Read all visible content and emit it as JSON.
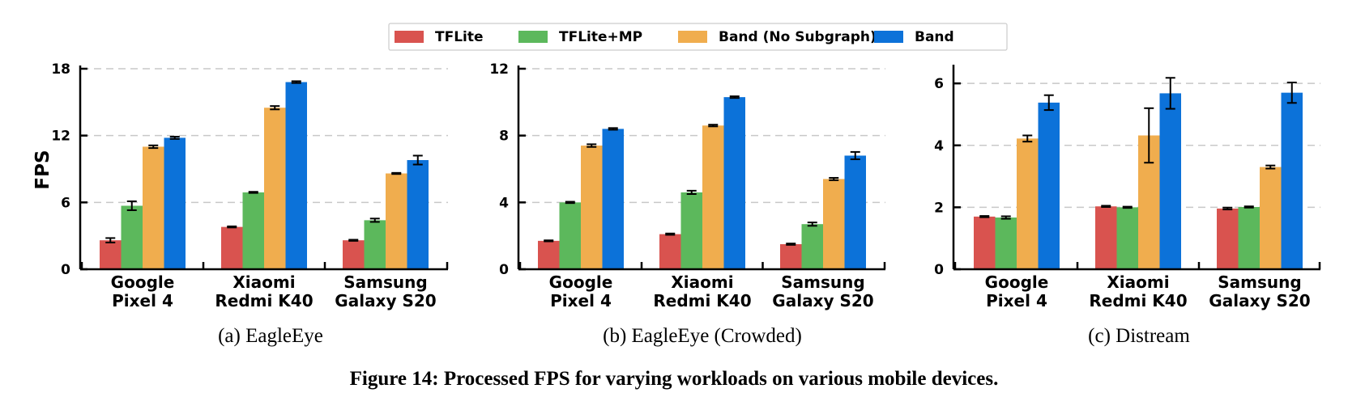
{
  "legend": {
    "items": [
      {
        "label": "TFLite",
        "color": "#d9534f"
      },
      {
        "label": "TFLite+MP",
        "color": "#5cb85c"
      },
      {
        "label": "Band (No Subgraph)",
        "color": "#f0ad4e"
      },
      {
        "label": "Band",
        "color": "#0c72d9"
      }
    ]
  },
  "captions": {
    "a": "(a) EagleEye",
    "b": "(b) EagleEye (Crowded)",
    "c": "(c) Distream",
    "figure": "Figure 14: Processed FPS for varying workloads on various mobile devices."
  },
  "chart_data": [
    {
      "type": "bar",
      "ylabel": "FPS",
      "ylim": [
        0,
        18
      ],
      "yticks": [
        0,
        6,
        12,
        18
      ],
      "grid": true,
      "categories": [
        [
          "Google",
          "Pixel 4"
        ],
        [
          "Xiaomi",
          "Redmi K40"
        ],
        [
          "Samsung",
          "Galaxy S20"
        ]
      ],
      "series": [
        {
          "name": "TFLite",
          "values": [
            2.6,
            3.8,
            2.6
          ],
          "errors": [
            0.2,
            0.05,
            0.05
          ]
        },
        {
          "name": "TFLite+MP",
          "values": [
            5.7,
            6.9,
            4.4
          ],
          "errors": [
            0.4,
            0.05,
            0.15
          ]
        },
        {
          "name": "Band (No Subgraph)",
          "values": [
            11.0,
            14.5,
            8.6
          ],
          "errors": [
            0.12,
            0.15,
            0.05
          ]
        },
        {
          "name": "Band",
          "values": [
            11.8,
            16.8,
            9.8
          ],
          "errors": [
            0.1,
            0.08,
            0.4
          ]
        }
      ]
    },
    {
      "type": "bar",
      "ylabel": "",
      "ylim": [
        0,
        12
      ],
      "yticks": [
        0,
        4,
        8,
        12
      ],
      "grid": true,
      "categories": [
        [
          "Google",
          "Pixel 4"
        ],
        [
          "Xiaomi",
          "Redmi K40"
        ],
        [
          "Samsung",
          "Galaxy S20"
        ]
      ],
      "series": [
        {
          "name": "TFLite",
          "values": [
            1.7,
            2.1,
            1.5
          ],
          "errors": [
            0.03,
            0.04,
            0.04
          ]
        },
        {
          "name": "TFLite+MP",
          "values": [
            4.0,
            4.6,
            2.7
          ],
          "errors": [
            0.04,
            0.1,
            0.1
          ]
        },
        {
          "name": "Band (No Subgraph)",
          "values": [
            7.4,
            8.6,
            5.4
          ],
          "errors": [
            0.08,
            0.05,
            0.07
          ]
        },
        {
          "name": "Band",
          "values": [
            8.4,
            10.3,
            6.8
          ],
          "errors": [
            0.05,
            0.05,
            0.22
          ]
        }
      ]
    },
    {
      "type": "bar",
      "ylabel": "",
      "ylim": [
        0,
        6.5
      ],
      "yticks": [
        0,
        2,
        4,
        6
      ],
      "grid": true,
      "categories": [
        [
          "Google",
          "Pixel 4"
        ],
        [
          "Xiaomi",
          "Redmi K40"
        ],
        [
          "Samsung",
          "Galaxy S20"
        ]
      ],
      "series": [
        {
          "name": "TFLite",
          "values": [
            1.7,
            2.03,
            1.96
          ],
          "errors": [
            0.02,
            0.02,
            0.03
          ]
        },
        {
          "name": "TFLite+MP",
          "values": [
            1.67,
            2.0,
            2.01
          ],
          "errors": [
            0.04,
            0.02,
            0.02
          ]
        },
        {
          "name": "Band (No Subgraph)",
          "values": [
            4.22,
            4.32,
            3.3
          ],
          "errors": [
            0.1,
            0.88,
            0.05
          ]
        },
        {
          "name": "Band",
          "values": [
            5.38,
            5.68,
            5.7
          ],
          "errors": [
            0.24,
            0.5,
            0.33
          ]
        }
      ]
    }
  ]
}
